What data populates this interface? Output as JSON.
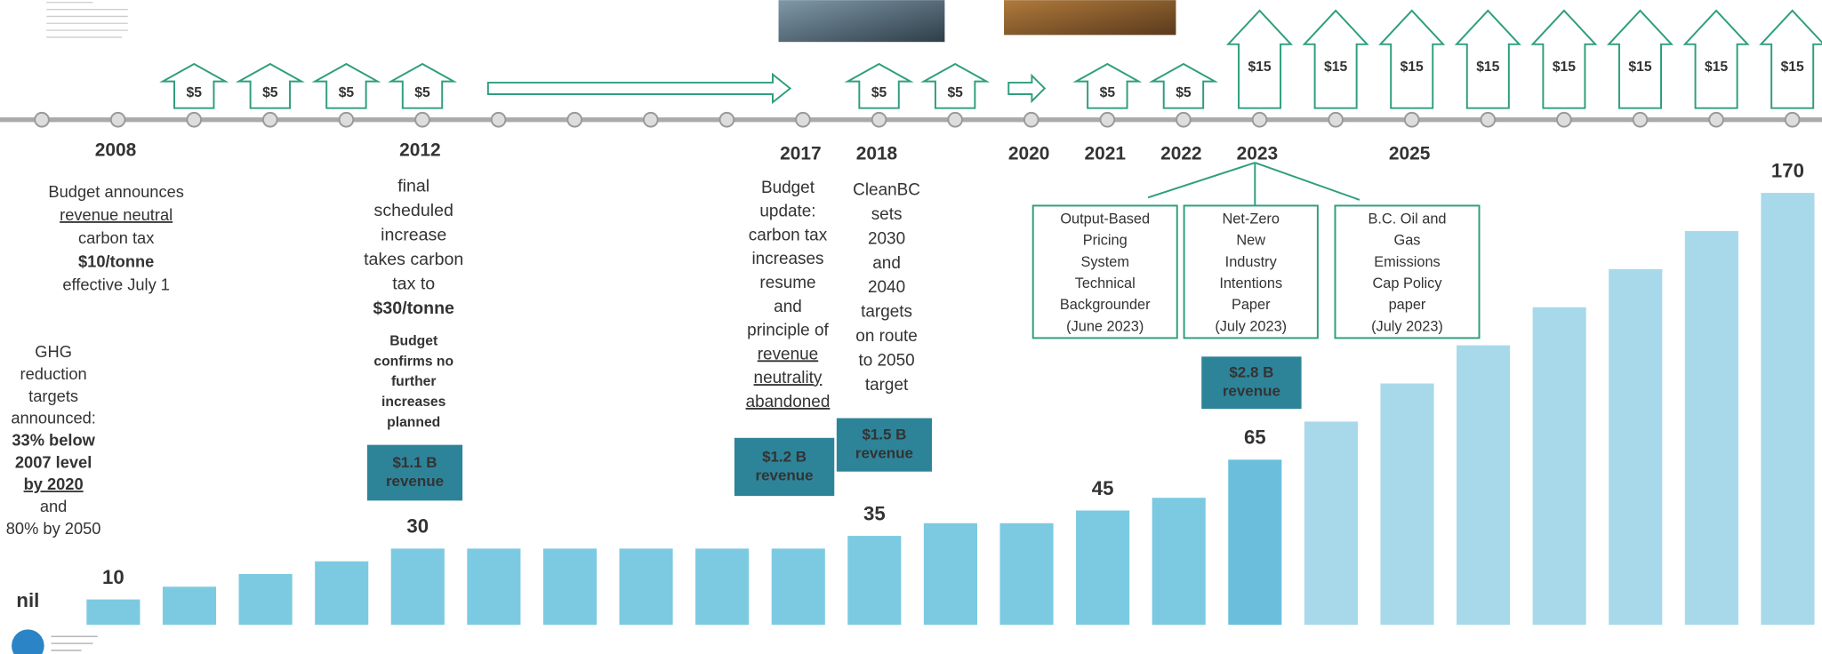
{
  "chart_data": {
    "type": "bar",
    "categories": [
      null,
      "2008",
      null,
      null,
      null,
      "2012",
      null,
      null,
      null,
      null,
      "2017",
      "2018",
      null,
      "2020",
      "2021",
      "2022",
      "2023",
      null,
      "2025",
      null,
      null,
      null,
      null,
      null
    ],
    "values": [
      null,
      10,
      15,
      20,
      25,
      30,
      30,
      30,
      30,
      30,
      30,
      35,
      40,
      40,
      45,
      50,
      65,
      80,
      95,
      110,
      125,
      140,
      155,
      170
    ],
    "value_labels": [
      "nil",
      "10",
      null,
      null,
      null,
      "30",
      null,
      null,
      null,
      null,
      null,
      "35",
      null,
      null,
      "45",
      null,
      "65",
      null,
      null,
      null,
      null,
      null,
      null,
      "170"
    ],
    "colors": [
      "#7ccae1",
      "#7ccae1",
      "#7ccae1",
      "#7ccae1",
      "#7ccae1",
      "#7ccae1",
      "#7ccae1",
      "#7ccae1",
      "#7ccae1",
      "#7ccae1",
      "#7ccae1",
      "#7ccae1",
      "#7ccae1",
      "#7ccae1",
      "#7ccae1",
      "#7ccae1",
      "#6bbfdd",
      "#a8d9ea",
      "#a8d9ea",
      "#a8d9ea",
      "#a8d9ea",
      "#a8d9ea",
      "#a8d9ea",
      "#a8d9ea"
    ],
    "increase_labels": [
      null,
      null,
      "$5",
      "$5",
      "$5",
      "$5",
      null,
      null,
      null,
      null,
      null,
      "$5",
      "$5",
      null,
      "$5",
      "$5",
      "$15",
      "$15",
      "$15",
      "$15",
      "$15",
      "$15",
      "$15",
      "$15"
    ]
  },
  "annotations": {
    "budget_2008": [
      "Budget announces",
      "revenue neutral",
      "carbon tax",
      "$10/tonne",
      "effective July 1"
    ],
    "ghg_targets": [
      "GHG",
      "reduction",
      "targets",
      "announced:",
      "33% below",
      "2007 level",
      "by 2020",
      "and",
      "80% by 2050"
    ],
    "increase_2012": [
      "final",
      "scheduled",
      "increase",
      "takes carbon",
      "tax to",
      "$30/tonne"
    ],
    "confirm_2012": [
      "Budget",
      "confirms no",
      "further",
      "increases",
      "planned"
    ],
    "update_2017": [
      "Budget",
      "update:",
      "carbon tax",
      "increases",
      "resume",
      "and",
      "principle of",
      "revenue",
      "neutrality",
      "abandoned"
    ],
    "cleanbc_2018": [
      "CleanBC",
      "sets",
      "2030",
      "and",
      "2040",
      "targets",
      "on route",
      "to 2050",
      "target"
    ]
  },
  "revenue_boxes": [
    [
      "$1.1 B",
      "revenue"
    ],
    [
      "$1.2 B",
      "revenue"
    ],
    [
      "$1.5 B",
      "revenue"
    ],
    [
      "$2.8 B",
      "revenue"
    ]
  ],
  "reports": [
    [
      "Output-Based",
      "Pricing",
      "System",
      "Technical",
      "Backgrounder",
      "(June 2023)"
    ],
    [
      "Net-Zero",
      "New",
      "Industry",
      "Intentions",
      "Paper",
      "(July 2023)"
    ],
    [
      "B.C. Oil and",
      "Gas",
      "Emissions",
      "Cap Policy",
      "paper",
      "(July 2023)"
    ]
  ]
}
